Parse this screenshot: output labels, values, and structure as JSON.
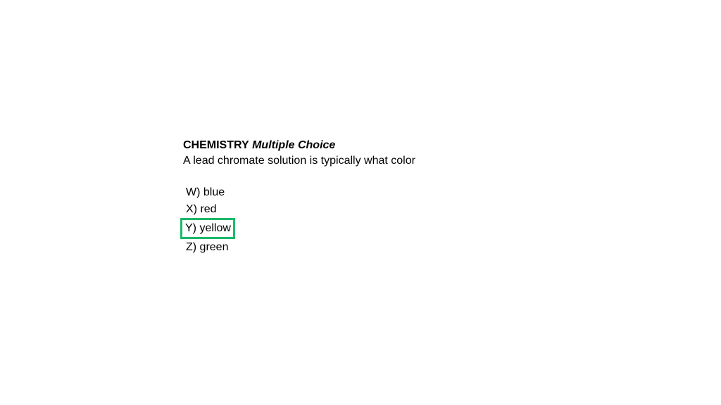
{
  "question": {
    "subject": "CHEMISTRY",
    "type": "Multiple Choice",
    "text": "A lead chromate solution is typically what color",
    "options": [
      {
        "letter": "W",
        "text": "blue"
      },
      {
        "letter": "X",
        "text": "red"
      },
      {
        "letter": "Y",
        "text": "yellow"
      },
      {
        "letter": "Z",
        "text": "green"
      }
    ],
    "highlighted_index": 2,
    "highlight_color": "#1db96a"
  },
  "colors": {
    "background": "#ffffff",
    "text": "#000000"
  },
  "typography": {
    "font_family": "Arial, Helvetica, sans-serif",
    "font_size": 16
  }
}
